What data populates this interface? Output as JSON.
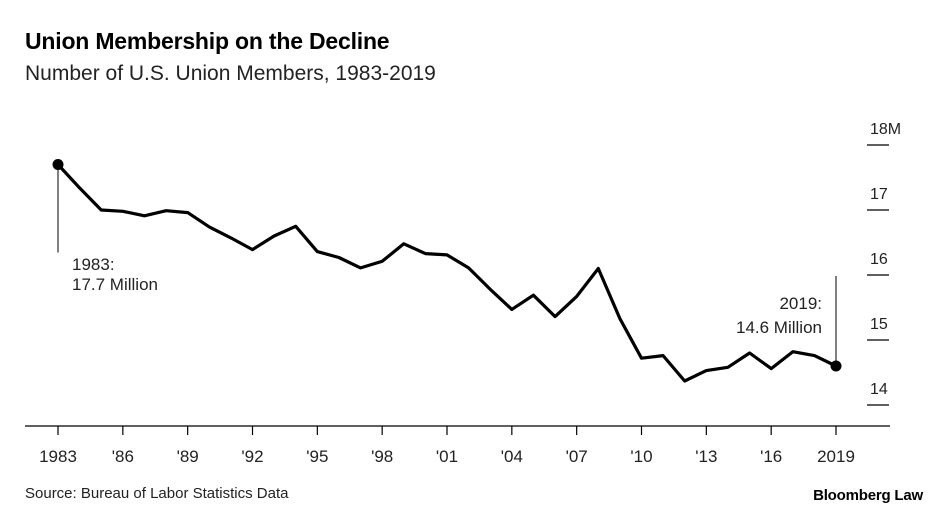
{
  "header": {
    "title": "Union Membership on the Decline",
    "subtitle": "Number of U.S. Union Members, 1983-2019"
  },
  "footer": {
    "source": "Source: Bureau of Labor Statistics Data",
    "brand": "Bloomberg Law"
  },
  "colors": {
    "line": "#000000",
    "axis": "#000000",
    "text": "#222222"
  },
  "chart_data": {
    "type": "line",
    "title": "Union Membership on the Decline",
    "subtitle": "Number of U.S. Union Members, 1983-2019",
    "xlabel": "",
    "ylabel": "",
    "xlim": [
      1983,
      2019
    ],
    "ylim": [
      13.7,
      18
    ],
    "grid": false,
    "y_axis_side": "right",
    "x_ticks": [
      1983,
      1986,
      1989,
      1992,
      1995,
      1998,
      2001,
      2004,
      2007,
      2010,
      2013,
      2016,
      2019
    ],
    "x_tick_labels": [
      "1983",
      "'86",
      "'89",
      "'92",
      "'95",
      "'98",
      "'01",
      "'04",
      "'07",
      "'10",
      "'13",
      "'16",
      "2019"
    ],
    "y_ticks": [
      14,
      15,
      16,
      17,
      18
    ],
    "y_tick_labels": [
      "14",
      "15",
      "16",
      "17",
      "18M"
    ],
    "series": [
      {
        "x": [
          1983,
          1984,
          1985,
          1986,
          1987,
          1988,
          1989,
          1990,
          1991,
          1992,
          1993,
          1994,
          1995,
          1996,
          1997,
          1998,
          1999,
          2000,
          2001,
          2002,
          2003,
          2004,
          2005,
          2006,
          2007,
          2008,
          2009,
          2010,
          2011,
          2012,
          2013,
          2014,
          2015,
          2016,
          2017,
          2018,
          2019
        ],
        "values": [
          17.7,
          17.34,
          17.0,
          16.98,
          16.91,
          16.99,
          16.96,
          16.74,
          16.57,
          16.39,
          16.6,
          16.75,
          16.36,
          16.27,
          16.11,
          16.21,
          16.48,
          16.33,
          16.31,
          16.11,
          15.78,
          15.47,
          15.69,
          15.36,
          15.67,
          16.1,
          15.33,
          14.72,
          14.76,
          14.37,
          14.53,
          14.58,
          14.8,
          14.56,
          14.82,
          14.76,
          14.6
        ]
      }
    ],
    "annotations": [
      {
        "x": 1983,
        "y": 17.7,
        "line1": "1983:",
        "line2": "17.7 Million"
      },
      {
        "x": 2019,
        "y": 14.6,
        "line1": "2019:",
        "line2": "14.6 Million"
      }
    ]
  }
}
